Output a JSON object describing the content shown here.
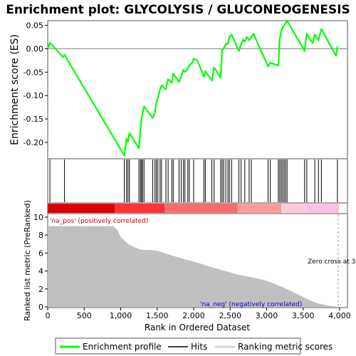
{
  "title": "Enrichment plot: GLYCOLYSIS / GLUCONEOGENESIS",
  "legend": [
    {
      "label": "Enrichment profile",
      "color": "#00ff00"
    },
    {
      "label": "Hits",
      "color": "#000000"
    },
    {
      "label": "Ranking metric scores",
      "color": "#d3d3d3"
    }
  ],
  "chart_data": [
    {
      "type": "line",
      "ylabel": "Enrichment score (ES)",
      "ylim": [
        -0.235,
        0.06
      ],
      "yticks": [
        "0.05",
        "0.00",
        "-0.05",
        "-0.10",
        "-0.15",
        "-0.20"
      ],
      "color": "#00ff00",
      "series": [
        {
          "x": [
            0,
            30,
            210,
            230,
            1050,
            1080,
            1100,
            1120,
            1250,
            1270,
            1285,
            1300,
            1320,
            1440,
            1470,
            1490,
            1510,
            1540,
            1560,
            1620,
            1650,
            1700,
            1720,
            1800,
            1830,
            1860,
            1880,
            1920,
            1940,
            1980,
            2000,
            2050,
            2140,
            2160,
            2250,
            2280,
            2370,
            2390,
            2410,
            2440,
            2470,
            2490,
            2520,
            2620,
            2650,
            2680,
            2700,
            2730,
            2760,
            2790,
            2820,
            3020,
            3050,
            3160,
            3180,
            3200,
            3220,
            3240,
            3260,
            3280,
            3520,
            3550,
            3630,
            3660,
            3710,
            3750,
            3950,
            3970
          ],
          "values": [
            0.0,
            0.013,
            -0.018,
            -0.013,
            -0.228,
            -0.192,
            -0.198,
            -0.18,
            -0.212,
            -0.172,
            -0.15,
            -0.138,
            -0.123,
            -0.148,
            -0.135,
            -0.115,
            -0.105,
            -0.087,
            -0.078,
            -0.087,
            -0.065,
            -0.073,
            -0.053,
            -0.071,
            -0.058,
            -0.045,
            -0.05,
            -0.042,
            -0.035,
            -0.03,
            -0.021,
            -0.025,
            -0.06,
            -0.048,
            -0.068,
            -0.04,
            -0.062,
            -0.002,
            0.0,
            0.01,
            0.01,
            0.025,
            0.03,
            -0.005,
            0.01,
            0.02,
            0.015,
            0.025,
            0.018,
            0.025,
            0.032,
            -0.038,
            -0.03,
            -0.036,
            0.02,
            0.038,
            0.045,
            0.05,
            0.055,
            0.06,
            -0.005,
            0.032,
            0.012,
            0.03,
            0.018,
            0.042,
            -0.015,
            0.005
          ]
        }
      ]
    },
    {
      "type": "bar",
      "name": "hits",
      "x": [
        30,
        230,
        1050,
        1080,
        1100,
        1120,
        1250,
        1270,
        1285,
        1300,
        1320,
        1440,
        1470,
        1490,
        1510,
        1540,
        1560,
        1620,
        1650,
        1700,
        1720,
        1800,
        1830,
        1860,
        1880,
        1920,
        1940,
        2000,
        2140,
        2160,
        2250,
        2280,
        2370,
        2390,
        2410,
        2440,
        2470,
        2490,
        2520,
        2620,
        2650,
        2700,
        2760,
        2790,
        3020,
        3050,
        3160,
        3180,
        3200,
        3220,
        3240,
        3260,
        3280,
        3520,
        3550,
        3660,
        3710,
        3750,
        3970
      ]
    },
    {
      "type": "heatmap",
      "name": "rank colour bar",
      "xlim": [
        0,
        4000
      ],
      "bands": [
        {
          "from": 0,
          "to": 920,
          "color": "#dd0000"
        },
        {
          "from": 920,
          "to": 1600,
          "color": "#ff3333"
        },
        {
          "from": 1600,
          "to": 2600,
          "color": "#ff6a6a"
        },
        {
          "from": 2600,
          "to": 3200,
          "color": "#ff9a9a"
        },
        {
          "from": 3200,
          "to": 3260,
          "color": "#ffd0d0"
        },
        {
          "from": 3260,
          "to": 3540,
          "color": "#ffc8e0"
        },
        {
          "from": 3540,
          "to": 3990,
          "color": "#ffc0e8"
        }
      ]
    },
    {
      "type": "area",
      "ylabel": "Ranked list metric (PreRanked)",
      "xlabel": "Rank in Ordered Dataset",
      "xlim": [
        0,
        4100
      ],
      "ylim": [
        0,
        10
      ],
      "xticks": [
        "0",
        "500",
        "1,000",
        "1,500",
        "2,000",
        "2,500",
        "3,000",
        "3,500",
        "4,000"
      ],
      "yticks": [
        "0",
        "2",
        "4",
        "6",
        "8",
        "10"
      ],
      "color": "#c0c0c0",
      "series": [
        {
          "x": [
            0,
            100,
            300,
            600,
            900,
            960,
            1000,
            1050,
            1100,
            1150,
            1200,
            1250,
            1300,
            1400,
            1500,
            1600,
            1700,
            1800,
            1900,
            2000,
            2100,
            2200,
            2300,
            2400,
            2500,
            2600,
            2700,
            2800,
            2900,
            3000,
            3100,
            3200,
            3300,
            3400,
            3500,
            3600,
            3700,
            3800,
            3900,
            3960,
            3980
          ],
          "values": [
            9.0,
            9.0,
            9.0,
            9.0,
            9.0,
            8.5,
            7.8,
            7.4,
            7.0,
            6.8,
            6.6,
            6.45,
            6.35,
            6.35,
            6.25,
            6.0,
            5.75,
            5.5,
            5.25,
            5.05,
            4.8,
            4.55,
            4.3,
            4.05,
            3.85,
            3.6,
            3.45,
            3.3,
            3.1,
            2.9,
            2.6,
            2.25,
            1.9,
            1.5,
            1.1,
            0.7,
            0.4,
            0.2,
            0.08,
            0.02,
            0.0
          ]
        }
      ],
      "annotations": [
        "'na_pos' (positively correlated)",
        "'na_neg' (negatively correlated)",
        "Zero cross at 3"
      ]
    }
  ]
}
